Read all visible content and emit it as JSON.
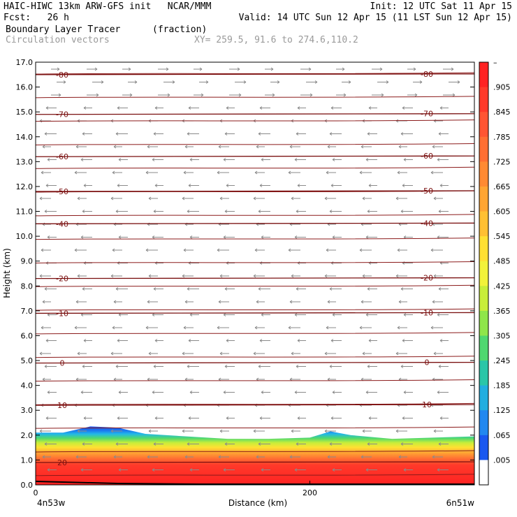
{
  "header": {
    "line1_left": "HAIC-HIWC 13km ARW-GFS init   NCAR/MMM",
    "line1_right": "Init: 12 UTC Sat 11 Apr 15",
    "line2_left": "Fcst:   26 h",
    "line2_right": "Valid: 14 UTC Sun 12 Apr 15 (11 LST Sun 12 Apr 15)",
    "field_name": "Boundary Layer Tracer",
    "field_units": "(fraction)",
    "overlay_name": "Circulation vectors",
    "xy_info": "XY= 259.5, 91.6 to 274.6,110.2"
  },
  "chart_data": {
    "type": "heatmap",
    "ylabel": "Height (km)",
    "xlabel": "Distance (km)",
    "xlim": [
      0,
      320
    ],
    "ylim": [
      0,
      17
    ],
    "yticks": [
      "0.0",
      "1.0",
      "2.0",
      "3.0",
      "4.0",
      "5.0",
      "6.0",
      "7.0",
      "8.0",
      "9.0",
      "10.0",
      "11.0",
      "12.0",
      "13.0",
      "14.0",
      "15.0",
      "16.0",
      "17.0"
    ],
    "xticks": [
      {
        "value": 0,
        "label": "0"
      },
      {
        "value": 200,
        "label": "200"
      }
    ],
    "x_endpoints": {
      "left": "4n53w",
      "right": "6n51w"
    },
    "colorbar": {
      "labels": [
        "–",
        ".905",
        ".845",
        ".785",
        ".725",
        ".665",
        ".605",
        ".545",
        ".485",
        ".425",
        ".365",
        ".305",
        ".245",
        ".185",
        ".125",
        ".065",
        ".005"
      ],
      "colors": [
        "#ff2222",
        "#ff3a2a",
        "#ff5533",
        "#ff6f33",
        "#ff8a33",
        "#ffa533",
        "#ffc033",
        "#ffe033",
        "#f2f23a",
        "#c8ee3a",
        "#8fe64a",
        "#4fd870",
        "#2ac6a8",
        "#22aee0",
        "#2288f0",
        "#1a58f0",
        "#ffffff"
      ]
    },
    "isotherms": [
      {
        "label": "-80",
        "height": 16.5
      },
      {
        "label": "-70",
        "height": 14.9
      },
      {
        "label": "-60",
        "height": 13.2
      },
      {
        "label": "-50",
        "height": 11.8
      },
      {
        "label": "-40",
        "height": 10.5
      },
      {
        "label": "-20",
        "height": 8.3
      },
      {
        "label": "-10",
        "height": 6.9
      },
      {
        "label": "0",
        "height": 4.9
      },
      {
        "label": "10",
        "height": 3.2
      },
      {
        "label": "20",
        "height": 0.9
      }
    ],
    "boundary_layer_top": [
      {
        "x": 0,
        "y": 2.1
      },
      {
        "x": 20,
        "y": 2.1
      },
      {
        "x": 40,
        "y": 2.35
      },
      {
        "x": 60,
        "y": 2.3
      },
      {
        "x": 80,
        "y": 2.05
      },
      {
        "x": 110,
        "y": 1.95
      },
      {
        "x": 140,
        "y": 1.85
      },
      {
        "x": 170,
        "y": 1.85
      },
      {
        "x": 200,
        "y": 1.9
      },
      {
        "x": 215,
        "y": 2.15
      },
      {
        "x": 230,
        "y": 2.0
      },
      {
        "x": 260,
        "y": 1.85
      },
      {
        "x": 290,
        "y": 1.9
      },
      {
        "x": 320,
        "y": 1.95
      }
    ]
  }
}
